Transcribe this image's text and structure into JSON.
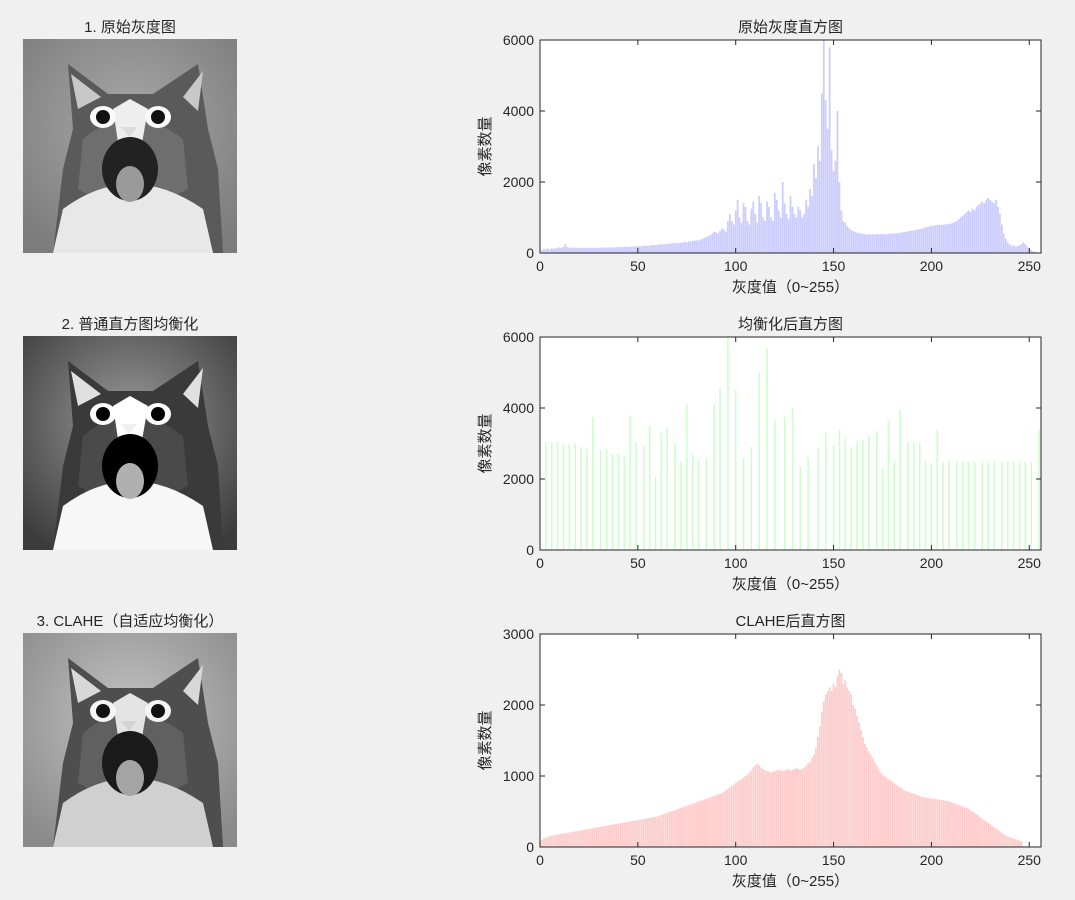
{
  "images": [
    {
      "title": "1. 原始灰度图",
      "style": "original"
    },
    {
      "title": "2. 普通直方图均衡化",
      "style": "equalized"
    },
    {
      "title": "3. CLAHE（自适应均衡化）",
      "style": "clahe"
    }
  ],
  "chart_data": [
    {
      "type": "bar",
      "title": "原始灰度直方图",
      "xlabel": "灰度值（0~255）",
      "ylabel": "像素数量",
      "xlim": [
        0,
        256
      ],
      "ylim": [
        0,
        6000
      ],
      "xticks": [
        0,
        50,
        100,
        150,
        200,
        250
      ],
      "yticks": [
        0,
        2000,
        4000,
        6000
      ],
      "color": "#ccccff",
      "grid": false,
      "values": [
        0,
        80,
        120,
        110,
        130,
        100,
        140,
        120,
        130,
        150,
        160,
        140,
        180,
        250,
        170,
        150,
        150,
        140,
        150,
        145,
        150,
        140,
        150,
        145,
        150,
        140,
        150,
        145,
        150,
        140,
        150,
        150,
        155,
        150,
        160,
        150,
        160,
        155,
        160,
        165,
        170,
        160,
        170,
        175,
        180,
        170,
        180,
        185,
        190,
        180,
        200,
        190,
        200,
        205,
        210,
        200,
        210,
        220,
        230,
        220,
        230,
        240,
        250,
        240,
        260,
        250,
        270,
        260,
        280,
        270,
        290,
        280,
        290,
        300,
        320,
        300,
        330,
        320,
        340,
        350,
        360,
        350,
        380,
        400,
        420,
        450,
        480,
        500,
        550,
        600,
        580,
        550,
        620,
        700,
        650,
        600,
        900,
        1100,
        900,
        800,
        1200,
        1500,
        1000,
        850,
        1400,
        1300,
        900,
        800,
        1250,
        1450,
        1100,
        850,
        1600,
        1400,
        1000,
        900,
        1450,
        1300,
        1000,
        900,
        1700,
        1500,
        1200,
        1000,
        2000,
        1400,
        1100,
        950,
        1600,
        1300,
        1100,
        1000,
        1300,
        1200,
        1000,
        1100,
        1500,
        1300,
        1800,
        1600,
        2500,
        2100,
        3000,
        2600,
        4500,
        6200,
        4300,
        3500,
        5800,
        2900,
        2300,
        2600,
        4000,
        2000,
        1200,
        900,
        850,
        750,
        700,
        650,
        620,
        600,
        580,
        560,
        550,
        540,
        530,
        520,
        530,
        520,
        530,
        520,
        540,
        520,
        530,
        540,
        520,
        530,
        540,
        550,
        540,
        560,
        550,
        570,
        560,
        580,
        590,
        600,
        610,
        620,
        630,
        640,
        650,
        660,
        680,
        690,
        700,
        720,
        730,
        750,
        760,
        770,
        780,
        790,
        800,
        790,
        800,
        810,
        800,
        820,
        830,
        850,
        870,
        900,
        950,
        1000,
        1050,
        1100,
        1150,
        1200,
        1150,
        1250,
        1200,
        1300,
        1350,
        1400,
        1450,
        1400,
        1500,
        1550,
        1500,
        1450,
        1400,
        1500,
        1300,
        1100,
        800,
        550,
        400,
        300,
        250,
        200,
        220,
        180,
        200,
        210,
        250,
        300,
        250,
        180,
        120,
        80,
        50,
        30,
        20
      ]
    },
    {
      "type": "bar",
      "title": "均衡化后直方图",
      "xlabel": "灰度值（0~255）",
      "ylabel": "像素数量",
      "xlim": [
        0,
        256
      ],
      "ylim": [
        0,
        6000
      ],
      "xticks": [
        0,
        50,
        100,
        150,
        200,
        250
      ],
      "yticks": [
        0,
        2000,
        4000,
        6000
      ],
      "color": "#ccffcc",
      "grid": false,
      "bins": [
        3,
        6,
        9,
        12,
        15,
        18,
        21,
        24,
        27,
        31,
        34,
        37,
        40,
        43,
        46,
        49,
        53,
        56,
        59,
        62,
        65,
        69,
        72,
        75,
        78,
        81,
        85,
        89,
        92,
        96,
        100,
        104,
        108,
        112,
        116,
        120,
        125,
        129,
        133,
        137,
        142,
        146,
        150,
        153,
        156,
        159,
        162,
        165,
        168,
        172,
        175,
        178,
        181,
        184,
        188,
        191,
        194,
        197,
        200,
        203,
        206,
        209,
        213,
        216,
        219,
        222,
        226,
        229,
        232,
        236,
        239,
        242,
        245,
        248,
        251,
        255
      ],
      "values": [
        3050,
        3050,
        3050,
        3000,
        3000,
        3000,
        2900,
        2850,
        3750,
        2800,
        2850,
        2700,
        2700,
        2650,
        3800,
        3050,
        2950,
        3500,
        2050,
        3300,
        3450,
        3000,
        2500,
        4100,
        2700,
        2550,
        2600,
        4100,
        4550,
        6050,
        4500,
        2600,
        2900,
        5000,
        5700,
        3650,
        3750,
        4000,
        2350,
        2600,
        2850,
        3300,
        2950,
        3400,
        3150,
        2900,
        3050,
        3100,
        3200,
        3350,
        2300,
        3650,
        2500,
        3950,
        3050,
        3050,
        3050,
        2500,
        2450,
        3400,
        2500,
        2500,
        2500,
        2500,
        2500,
        2500,
        2500,
        2500,
        2500,
        2500,
        2500,
        2500,
        2500,
        2500,
        2500,
        3400
      ]
    },
    {
      "type": "bar",
      "title": "CLAHE后直方图",
      "xlabel": "灰度值（0~255）",
      "ylabel": "像素数量",
      "xlim": [
        0,
        256
      ],
      "ylim": [
        0,
        3000
      ],
      "xticks": [
        0,
        50,
        100,
        150,
        200,
        250
      ],
      "yticks": [
        0,
        1000,
        2000,
        3000
      ],
      "color": "#ffcccc",
      "grid": false,
      "values": [
        80,
        100,
        120,
        130,
        140,
        150,
        160,
        165,
        170,
        175,
        180,
        185,
        190,
        195,
        200,
        205,
        210,
        215,
        220,
        225,
        230,
        235,
        240,
        245,
        250,
        255,
        260,
        265,
        270,
        275,
        280,
        285,
        290,
        295,
        300,
        305,
        310,
        315,
        320,
        325,
        330,
        335,
        340,
        345,
        350,
        355,
        360,
        365,
        370,
        375,
        380,
        385,
        390,
        395,
        400,
        405,
        410,
        415,
        420,
        425,
        430,
        440,
        450,
        460,
        470,
        480,
        490,
        500,
        510,
        520,
        530,
        540,
        550,
        560,
        570,
        580,
        590,
        600,
        610,
        620,
        630,
        640,
        650,
        660,
        670,
        680,
        690,
        700,
        710,
        720,
        730,
        740,
        750,
        760,
        780,
        800,
        820,
        840,
        860,
        880,
        900,
        920,
        940,
        960,
        980,
        1000,
        1020,
        1050,
        1080,
        1120,
        1150,
        1170,
        1150,
        1120,
        1100,
        1080,
        1070,
        1060,
        1050,
        1060,
        1070,
        1080,
        1090,
        1080,
        1070,
        1080,
        1090,
        1100,
        1080,
        1090,
        1100,
        1120,
        1100,
        1090,
        1100,
        1120,
        1150,
        1180,
        1200,
        1250,
        1300,
        1400,
        1550,
        1700,
        1900,
        2050,
        2150,
        2200,
        2250,
        2200,
        2300,
        2250,
        2400,
        2500,
        2450,
        2300,
        2350,
        2250,
        2200,
        2150,
        2000,
        1950,
        1850,
        1750,
        1650,
        1550,
        1450,
        1400,
        1350,
        1300,
        1250,
        1200,
        1150,
        1100,
        1050,
        1020,
        1000,
        980,
        960,
        940,
        920,
        900,
        880,
        860,
        840,
        820,
        800,
        790,
        780,
        770,
        760,
        750,
        740,
        730,
        720,
        710,
        700,
        700,
        690,
        690,
        680,
        680,
        680,
        670,
        670,
        660,
        660,
        650,
        650,
        640,
        630,
        620,
        610,
        600,
        590,
        580,
        570,
        560,
        550,
        540,
        520,
        500,
        480,
        460,
        440,
        420,
        400,
        380,
        360,
        340,
        320,
        300,
        280,
        260,
        240,
        220,
        200,
        180,
        160,
        150,
        140,
        130,
        120,
        110,
        100,
        90,
        80
      ]
    }
  ]
}
